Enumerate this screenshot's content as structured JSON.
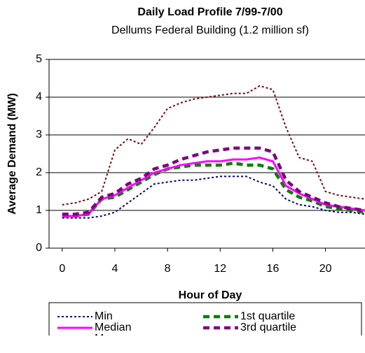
{
  "chart_data": {
    "type": "line",
    "title": "Daily Load Profile 7/99-7/00",
    "subtitle": "Dellums Federal Building (1.2 million sf)",
    "x_label": "Hour of Day",
    "y_label": "Average Demand (MW)",
    "x": [
      0,
      1,
      2,
      3,
      4,
      5,
      6,
      7,
      8,
      9,
      10,
      11,
      12,
      13,
      14,
      15,
      16,
      17,
      18,
      19,
      20,
      21,
      22,
      23
    ],
    "series": [
      {
        "name": "Min",
        "color": "#000080",
        "dash": "dotted",
        "values": [
          0.8,
          0.8,
          0.8,
          0.85,
          0.95,
          1.2,
          1.45,
          1.7,
          1.75,
          1.8,
          1.8,
          1.85,
          1.9,
          1.9,
          1.9,
          1.75,
          1.65,
          1.3,
          1.15,
          1.1,
          1.0,
          0.95,
          0.95,
          0.9
        ]
      },
      {
        "name": "1st quartile",
        "color": "#008000",
        "dash": "dashed",
        "values": [
          0.85,
          0.85,
          0.9,
          1.3,
          1.35,
          1.55,
          1.75,
          1.95,
          2.1,
          2.15,
          2.2,
          2.2,
          2.2,
          2.25,
          2.2,
          2.2,
          2.1,
          1.55,
          1.35,
          1.25,
          1.1,
          1.05,
          1.0,
          0.95
        ]
      },
      {
        "name": "Median",
        "color": "#ff00ff",
        "dash": "solid",
        "values": [
          0.85,
          0.85,
          0.9,
          1.3,
          1.4,
          1.6,
          1.8,
          2.0,
          2.1,
          2.2,
          2.25,
          2.3,
          2.3,
          2.35,
          2.35,
          2.4,
          2.3,
          1.65,
          1.45,
          1.3,
          1.15,
          1.1,
          1.05,
          1.0
        ]
      },
      {
        "name": "3rd quartile",
        "color": "#800080",
        "dash": "dashed",
        "values": [
          0.9,
          0.9,
          0.95,
          1.35,
          1.45,
          1.7,
          1.85,
          2.1,
          2.2,
          2.35,
          2.45,
          2.55,
          2.6,
          2.65,
          2.65,
          2.65,
          2.55,
          1.8,
          1.5,
          1.35,
          1.2,
          1.1,
          1.05,
          1.0
        ]
      },
      {
        "name": "Max",
        "color": "#800000",
        "dash": "dotted",
        "values": [
          1.15,
          1.2,
          1.3,
          1.5,
          2.6,
          2.9,
          2.75,
          3.2,
          3.7,
          3.85,
          3.95,
          4.0,
          4.05,
          4.1,
          4.1,
          4.3,
          4.2,
          3.2,
          2.4,
          2.3,
          1.5,
          1.4,
          1.35,
          1.3
        ]
      }
    ],
    "xlim": [
      -1,
      23
    ],
    "xticks": [
      0,
      4,
      8,
      12,
      16,
      20
    ],
    "ylim": [
      0,
      5
    ],
    "yticks": [
      0,
      1,
      2,
      3,
      4,
      5
    ],
    "grid": true,
    "legend": "bottom"
  }
}
